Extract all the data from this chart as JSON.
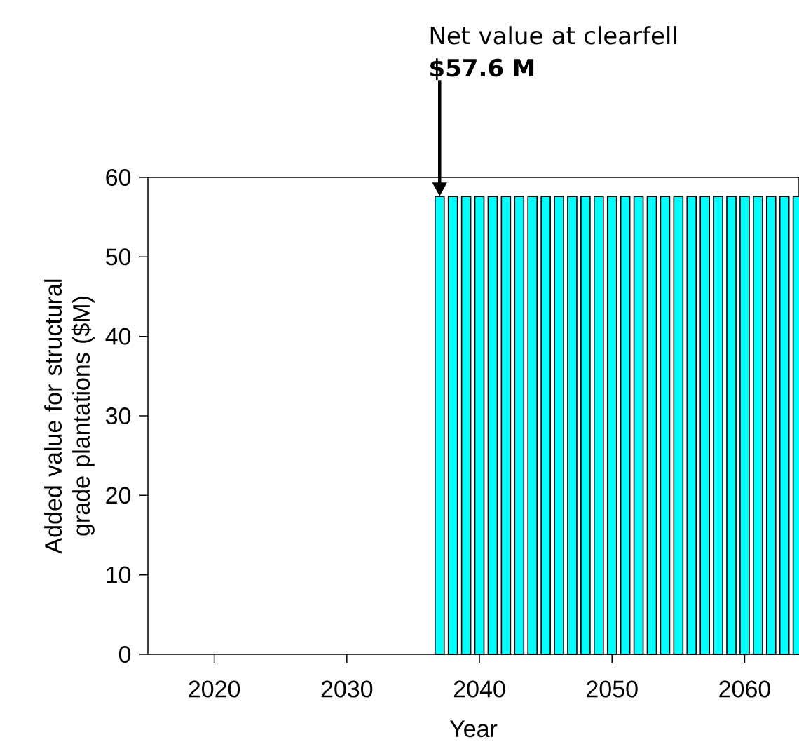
{
  "chart_data": {
    "type": "bar",
    "xlabel": "Year",
    "ylabel": "Added value for structural grade plantations ($M)",
    "x": [
      2037,
      2038,
      2039,
      2040,
      2041,
      2042,
      2043,
      2044,
      2045,
      2046,
      2047,
      2048,
      2049,
      2050,
      2051,
      2052,
      2053,
      2054,
      2055,
      2056,
      2057,
      2058,
      2059,
      2060,
      2061,
      2062,
      2063,
      2064
    ],
    "values": [
      57.6,
      57.6,
      57.6,
      57.6,
      57.6,
      57.6,
      57.6,
      57.6,
      57.6,
      57.6,
      57.6,
      57.6,
      57.6,
      57.6,
      57.6,
      57.6,
      57.6,
      57.6,
      57.6,
      57.6,
      57.6,
      57.6,
      57.6,
      57.6,
      57.6,
      57.6,
      57.6,
      57.6
    ],
    "color": "#00ffff",
    "xlim": [
      2015,
      2064.1
    ],
    "xticks": [
      2020,
      2030,
      2040,
      2050,
      2060
    ],
    "ylim": [
      0,
      60
    ],
    "yticks": [
      0,
      10,
      20,
      30,
      40,
      50,
      60
    ],
    "annotations": [
      "Net value at clearfell **$57.6 M**"
    ]
  }
}
